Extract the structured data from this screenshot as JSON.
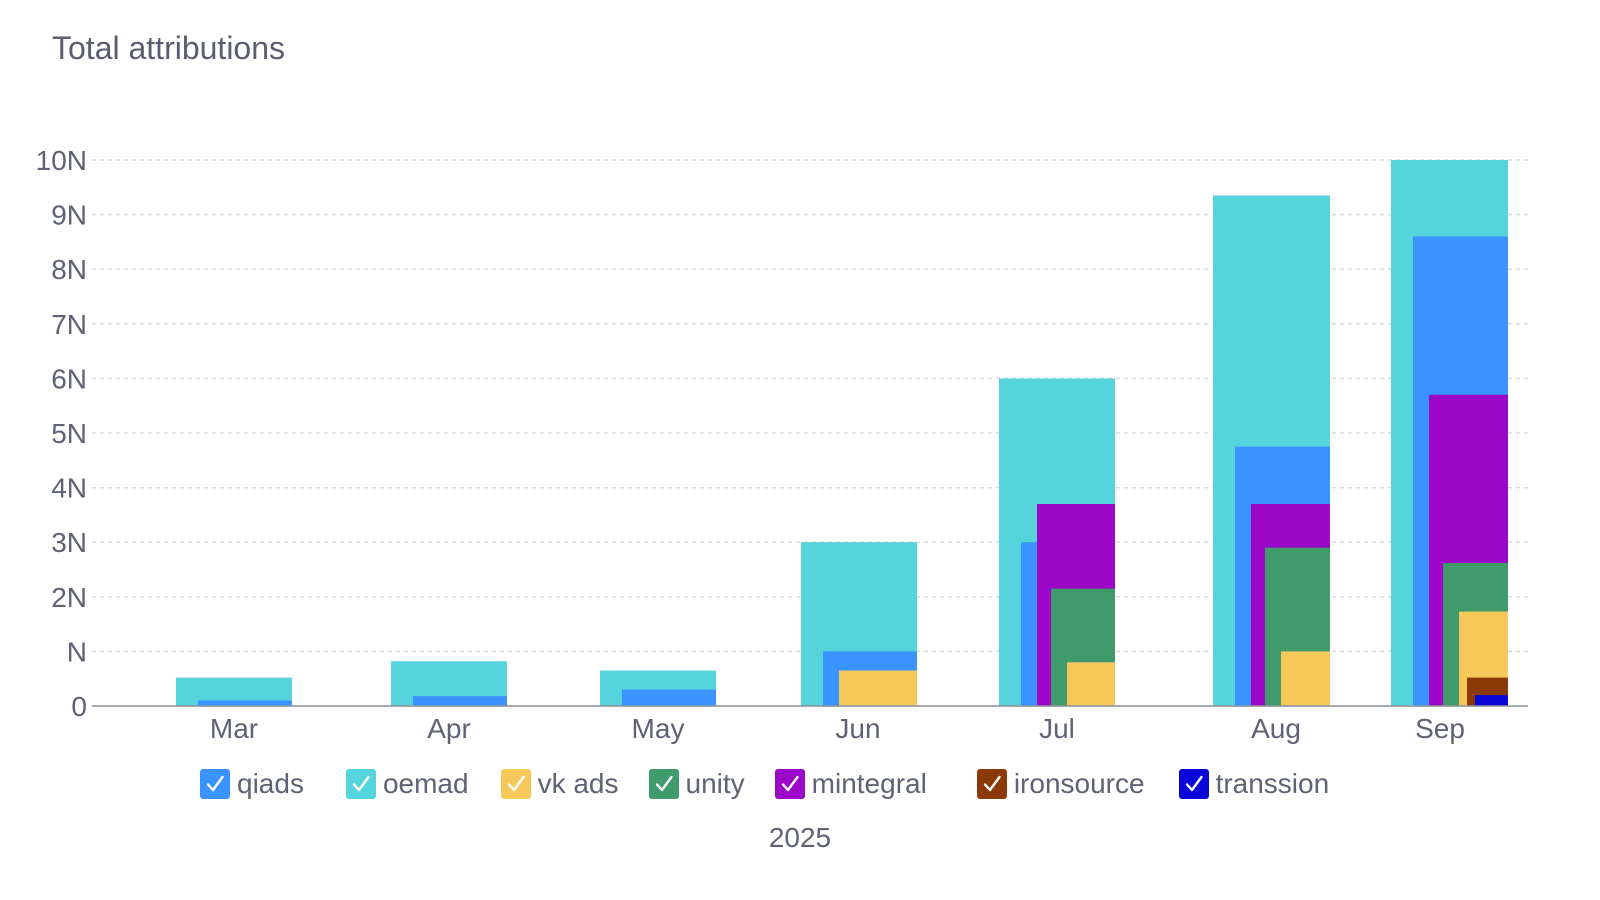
{
  "title": "Total attributions",
  "legend": [
    {
      "name": "qiads",
      "color": "#3a93ff"
    },
    {
      "name": "oemad",
      "color": "#55d4dc"
    },
    {
      "name": "vk ads",
      "color": "#f6c85a"
    },
    {
      "name": "unity",
      "color": "#3f9a6c"
    },
    {
      "name": "mintegral",
      "color": "#9b06c8"
    },
    {
      "name": "ironsource",
      "color": "#8b3a07"
    },
    {
      "name": "transsion",
      "color": "#0a06d8"
    }
  ],
  "chart_data": {
    "type": "bar",
    "title": "Total attributions",
    "xlabel": "2025",
    "ylabel": "",
    "ylim": [
      0,
      10
    ],
    "y_ticks": [
      "0",
      "N",
      "2N",
      "3N",
      "4N",
      "5N",
      "6N",
      "7N",
      "8N",
      "9N",
      "10N"
    ],
    "grid": true,
    "legend_position": "bottom",
    "categories": [
      "Mar",
      "Apr",
      "May",
      "Jun",
      "Jul",
      "Aug",
      "Sep"
    ],
    "series": [
      {
        "name": "oemad",
        "color": "#55d4dc",
        "values": [
          0.52,
          0.82,
          0.65,
          3.0,
          6.0,
          9.35,
          10.0
        ]
      },
      {
        "name": "qiads",
        "color": "#3a93ff",
        "values": [
          0.1,
          0.18,
          0.3,
          1.0,
          3.0,
          4.75,
          8.6
        ]
      },
      {
        "name": "mintegral",
        "color": "#9b06c8",
        "values": [
          null,
          null,
          null,
          null,
          3.7,
          3.7,
          5.7
        ]
      },
      {
        "name": "unity",
        "color": "#3f9a6c",
        "values": [
          null,
          null,
          null,
          null,
          2.15,
          2.9,
          2.62
        ]
      },
      {
        "name": "vk ads",
        "color": "#f6c85a",
        "values": [
          null,
          null,
          null,
          0.65,
          0.8,
          1.0,
          1.73
        ]
      },
      {
        "name": "ironsource",
        "color": "#8b3a07",
        "values": [
          null,
          null,
          null,
          null,
          null,
          null,
          0.52
        ]
      },
      {
        "name": "transsion",
        "color": "#0a06d8",
        "values": [
          null,
          null,
          null,
          null,
          null,
          null,
          0.2
        ]
      }
    ]
  }
}
